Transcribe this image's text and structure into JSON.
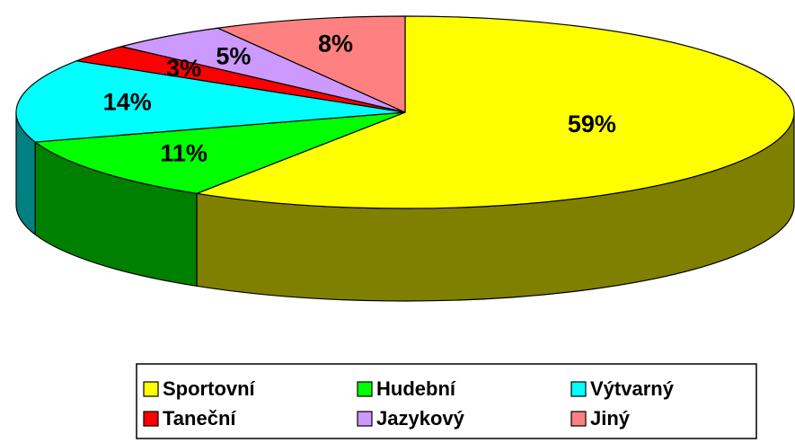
{
  "chart_data": {
    "type": "pie3d",
    "categories": [
      "Sportovní",
      "Hudební",
      "Výtvarný",
      "Taneční",
      "Jazykový",
      "Jiný"
    ],
    "values": [
      59,
      11,
      14,
      3,
      5,
      8
    ],
    "value_labels": [
      "59%",
      "11%",
      "14%",
      "3%",
      "5%",
      "8%"
    ],
    "colors": [
      "#ffff00",
      "#00ff00",
      "#00ffff",
      "#ff0000",
      "#cc99ff",
      "#ff8080"
    ],
    "side_colors": [
      "#808000",
      "#008000",
      "#008080",
      "#800000",
      "#664c80",
      "#804040"
    ]
  }
}
